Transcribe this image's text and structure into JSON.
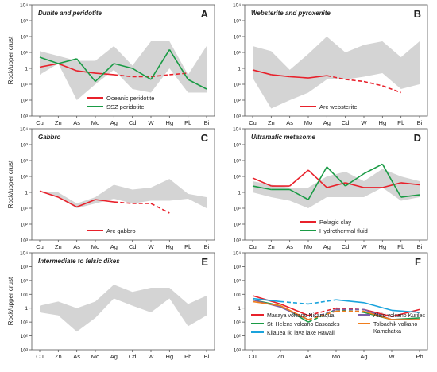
{
  "colors": {
    "band": "#d4d4d4",
    "red": "#e8212b",
    "green": "#1a9b45",
    "blue": "#1aa3dc",
    "purple": "#7b5ea8",
    "orange": "#f07d1c"
  },
  "chart_data": [
    {
      "type": "line",
      "letter": "A",
      "title": "Dunite and peridotite",
      "ylabel": "Rock/upper crust",
      "log": true,
      "ylim": [
        0.001,
        10000
      ],
      "categories": [
        "Cu",
        "Zn",
        "As",
        "Mo",
        "Ag",
        "Cd",
        "W",
        "Hg",
        "Pb",
        "Bi"
      ],
      "y_ticks": [
        "10³",
        "10²",
        "10¹",
        "1",
        "10¹",
        "10²",
        "10³",
        "10⁴"
      ],
      "band": {
        "upper": [
          12,
          6,
          3,
          3,
          25,
          1.5,
          50,
          50,
          0.4,
          25
        ],
        "lower": [
          0.4,
          2,
          0.01,
          0.1,
          0.8,
          0.05,
          0.03,
          1,
          0.03,
          0.03
        ]
      },
      "legend": [
        "Oceanic peridotite",
        "SSZ peridotite"
      ],
      "series": [
        {
          "name": "Oceanic peridotite",
          "color": "red",
          "values": [
            1.2,
            2,
            0.7,
            0.5,
            0.4,
            0.3,
            0.3,
            0.4,
            0.5,
            null
          ],
          "dashed_from": 4
        },
        {
          "name": "SSZ peridotite",
          "color": "green",
          "values": [
            5,
            2,
            4,
            0.15,
            2,
            1,
            0.2,
            15,
            0.2,
            0.05
          ]
        }
      ]
    },
    {
      "type": "line",
      "letter": "B",
      "title": "Websterite and pyroxenite",
      "ylabel": "",
      "log": true,
      "ylim": [
        0.001,
        10000
      ],
      "categories": [
        "Cu",
        "Zn",
        "As",
        "Mo",
        "Ag",
        "Cd",
        "W",
        "Hg",
        "Pb",
        "Bi"
      ],
      "y_ticks": [
        "10³",
        "10²",
        "10¹",
        "1",
        "10¹",
        "10²",
        "10³",
        "10⁴"
      ],
      "band": {
        "upper": [
          25,
          12,
          0.8,
          8,
          100,
          10,
          30,
          50,
          5,
          50
        ],
        "lower": [
          0.25,
          0.003,
          0.01,
          0.03,
          0.2,
          0.2,
          0.3,
          0.5,
          0.05,
          0.1
        ]
      },
      "legend": [
        "Arc websterite"
      ],
      "series": [
        {
          "name": "Arc websterite",
          "color": "red",
          "values": [
            0.8,
            0.4,
            0.3,
            0.25,
            0.35,
            0.2,
            0.15,
            0.08,
            0.03,
            null
          ],
          "dashed_from": 4
        }
      ]
    },
    {
      "type": "line",
      "letter": "C",
      "title": "Gabbro",
      "ylabel": "Rock/upper crust",
      "log": true,
      "ylim": [
        0.001,
        10000
      ],
      "categories": [
        "Cu",
        "Zn",
        "As",
        "Mo",
        "Ag",
        "Cd",
        "W",
        "Hg",
        "Pb",
        "Bi"
      ],
      "y_ticks": [
        "10³",
        "10²",
        "10¹",
        "1",
        "10¹",
        "10²",
        "10³",
        "10⁴"
      ],
      "band": {
        "upper": [
          1.2,
          1,
          0.2,
          0.5,
          3,
          1.5,
          2,
          7,
          0.8,
          0.5
        ],
        "lower": [
          1.2,
          0.5,
          0.1,
          0.2,
          0.4,
          0.2,
          0.3,
          0.3,
          0.4,
          0.1
        ]
      },
      "legend": [
        "Arc gabbro"
      ],
      "series": [
        {
          "name": "Arc gabbro",
          "color": "red",
          "values": [
            1.2,
            0.5,
            0.12,
            0.35,
            0.25,
            0.2,
            0.2,
            0.05,
            null,
            null
          ],
          "dashed_from": 4
        }
      ]
    },
    {
      "type": "line",
      "letter": "D",
      "title": "Ultramafic metasome",
      "ylabel": "",
      "log": true,
      "ylim": [
        0.001,
        10000
      ],
      "categories": [
        "Cu",
        "Zn",
        "As",
        "Mo",
        "Ag",
        "Cd",
        "W",
        "Hg",
        "Pb",
        "Bi"
      ],
      "y_ticks": [
        "10³",
        "10²",
        "10¹",
        "1",
        "10¹",
        "10²",
        "10³",
        "10⁴"
      ],
      "band": {
        "upper": [
          5,
          3,
          2,
          2,
          10,
          20,
          5,
          30,
          10,
          5
        ],
        "lower": [
          1,
          0.5,
          0.3,
          0.1,
          0.5,
          0.5,
          0.5,
          2,
          0.3,
          0.5
        ]
      },
      "legend": [
        "Pelagic clay",
        "Hydrothermal fluid"
      ],
      "series": [
        {
          "name": "Pelagic clay",
          "color": "red",
          "values": [
            8,
            2.5,
            2.5,
            25,
            2,
            4,
            2,
            2,
            4,
            3
          ]
        },
        {
          "name": "Hydrothermal fluid",
          "color": "green",
          "values": [
            2.5,
            1.5,
            1.5,
            0.35,
            40,
            2.5,
            15,
            60,
            0.5,
            0.7
          ]
        }
      ]
    },
    {
      "type": "line",
      "letter": "E",
      "title": "Intermediate to felsic dikes",
      "ylabel": "Rock/upper crust",
      "log": true,
      "ylim": [
        0.001,
        10000
      ],
      "categories": [
        "Cu",
        "Zn",
        "As",
        "Mo",
        "Ag",
        "Cd",
        "W",
        "Hg",
        "Pb",
        "Bi"
      ],
      "y_ticks": [
        "10³",
        "10²",
        "10¹",
        "1",
        "10¹",
        "10²",
        "10³",
        "10⁴"
      ],
      "band": {
        "upper": [
          1.5,
          3,
          1,
          3,
          50,
          15,
          30,
          30,
          2,
          8
        ],
        "lower": [
          0.5,
          0.3,
          0.02,
          0.2,
          5,
          1.5,
          0.5,
          5,
          0.05,
          0.3
        ]
      },
      "legend": [],
      "series": []
    },
    {
      "type": "line",
      "letter": "F",
      "title": "",
      "ylabel": "",
      "log": true,
      "ylim": [
        0.001,
        10000
      ],
      "categories": [
        "Cu",
        "Zn",
        "As",
        "Mo",
        "Ag",
        "W",
        "Pb"
      ],
      "y_ticks": [
        "10³",
        "10²",
        "10¹",
        "1",
        "10¹",
        "10²",
        "10³",
        "10⁴"
      ],
      "band": null,
      "legend": [
        "Masaya volcano Nicaraqua",
        "St. Helens volcano Cascades",
        "Kilauea Iki lava lake Hawaii",
        "Alaid volcano Kuriles",
        "Tolbachik volkano Kamchatka"
      ],
      "series": [
        {
          "name": "Masaya volcano Nicaraqua",
          "color": "red",
          "values": [
            8,
            2,
            0.3,
            1,
            0.8,
            0.25,
            0.8
          ],
          "dashed": [
            2,
            3
          ]
        },
        {
          "name": "St. Helens volcano Cascades",
          "color": "green",
          "values": [
            4,
            1.5,
            0.1,
            0.8,
            0.5,
            0.15,
            0.2
          ],
          "dashed": [
            2,
            3
          ]
        },
        {
          "name": "Kilauea Iki lava lake Hawaii",
          "color": "blue",
          "values": [
            5,
            3,
            2,
            4,
            2.5,
            0.7,
            0.5
          ],
          "dashed": [
            1,
            2
          ]
        },
        {
          "name": "Alaid volcano Kuriles",
          "color": "purple",
          "values": [
            4,
            1.2,
            0.15,
            0.8,
            0.8,
            0.15,
            0.15
          ],
          "dashed": [
            2,
            3
          ]
        },
        {
          "name": "Tolbachik volkano Kamchatka",
          "color": "orange",
          "values": [
            3,
            1.5,
            0.15,
            0.6,
            0.6,
            0.15,
            0.15
          ],
          "dashed": [
            2,
            3
          ]
        }
      ]
    }
  ]
}
